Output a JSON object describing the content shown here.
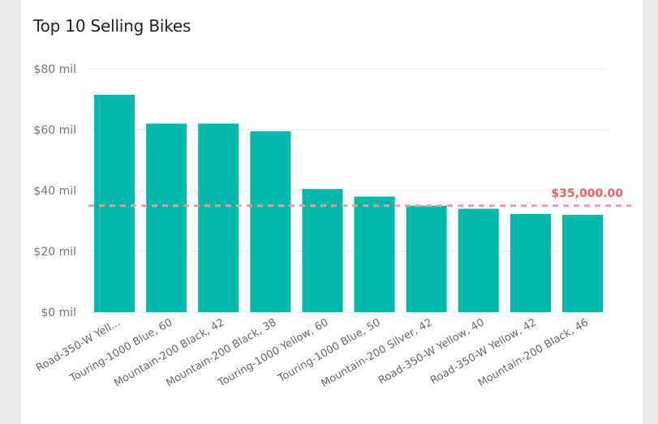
{
  "chart_data": {
    "type": "bar",
    "title": "Top 10 Selling Bikes",
    "categories": [
      "Road-350-W Yell...",
      "Touring-1000 Blue, 60",
      "Mountain-200 Black, 42",
      "Mountain-200 Black, 38",
      "Touring-1000 Yellow, 60",
      "Touring-1000 Blue, 50",
      "Mountain-200 Silver, 42",
      "Road-350-W Yellow, 40",
      "Road-350-W Yellow, 42",
      "Mountain-200 Black, 46"
    ],
    "values": [
      71.5,
      62,
      62,
      59.5,
      40.5,
      38,
      35,
      34,
      32.3,
      32
    ],
    "ylim": [
      0,
      80
    ],
    "yticks": [
      0,
      20,
      40,
      60,
      80
    ],
    "ytick_labels": [
      "$0 mil",
      "$20 mil",
      "$40 mil",
      "$60 mil",
      "$80 mil"
    ],
    "reference_line": {
      "value": 35,
      "label": "$35,000.00",
      "color": "#f59a9a",
      "label_color": "#f06262"
    },
    "bar_color": "#01b8aa",
    "grid": true
  }
}
